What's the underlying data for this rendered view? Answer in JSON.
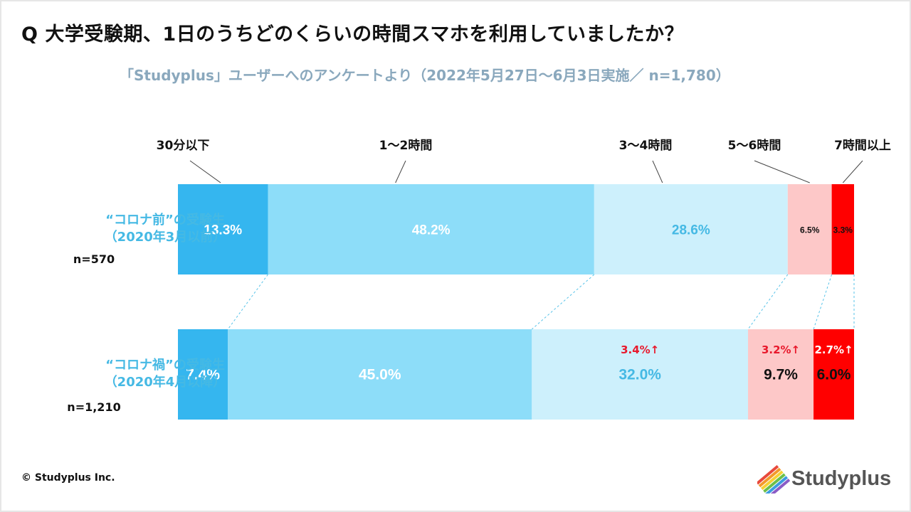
{
  "header": {
    "title": "Q 大学受験期、1日のうちどのくらいの時間スマホを利用していましたか？",
    "subtitle": "「Studyplus」ユーザーへのアンケートより（2022年5月27日〜6月3日実施／ n=1,780）"
  },
  "rows": [
    {
      "label_line1": "“コロナ前”の受験生",
      "label_line2": "（2020年3月以前）",
      "n": "n=570"
    },
    {
      "label_line1": "“コロナ禍”の受験生",
      "label_line2": "（2020年4月以降）",
      "n": "n=1,210"
    }
  ],
  "footer": {
    "copyright": "© Studyplus Inc.",
    "brand": "Studyplus"
  },
  "colors": {
    "c1": "#35b6ef",
    "c2": "#8dddf9",
    "c3": "#cdf0fc",
    "c4": "#fdc8c8",
    "c5": "#ff0000",
    "arrow_text": "#e8192c",
    "guide": "#57c3e9"
  },
  "chart_data": {
    "type": "bar",
    "orientation": "horizontal-stacked-100",
    "categories": [
      "“コロナ前”の受験生（2020年3月以前）",
      "“コロナ禍”の受験生（2020年4月以降）"
    ],
    "legend": [
      "30分以下",
      "1〜2時間",
      "3〜4時間",
      "5〜6時間",
      "7時間以上"
    ],
    "series": [
      {
        "name": "30分以下",
        "values": [
          13.3,
          7.4
        ],
        "labels": [
          "13.3%",
          "7.4%"
        ]
      },
      {
        "name": "1〜2時間",
        "values": [
          48.2,
          45.0
        ],
        "labels": [
          "48.2%",
          "45.0%"
        ]
      },
      {
        "name": "3〜4時間",
        "values": [
          28.6,
          32.0
        ],
        "labels": [
          "28.6%",
          "32.0%"
        ]
      },
      {
        "name": "5〜6時間",
        "values": [
          6.5,
          9.7
        ],
        "labels": [
          "6.5%",
          "9.7%"
        ]
      },
      {
        "name": "7時間以上",
        "values": [
          3.3,
          6.0
        ],
        "labels": [
          "3.3%",
          "6.0%"
        ]
      }
    ],
    "annotations": [
      {
        "series": "3〜4時間",
        "text": "3.4%↑"
      },
      {
        "series": "5〜6時間",
        "text": "3.2%↑"
      },
      {
        "series": "7時間以上",
        "text": "2.7%↑"
      }
    ]
  }
}
